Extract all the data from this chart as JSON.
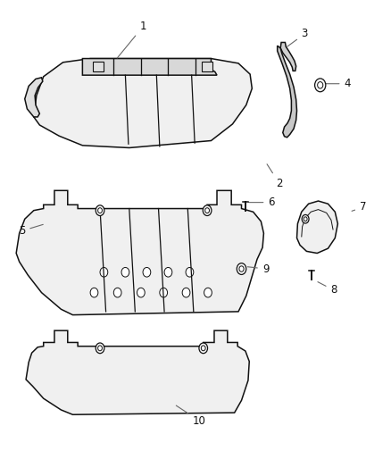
{
  "background_color": "#ffffff",
  "line_color": "#111111",
  "fill_color": "#f0f0f0",
  "fill_dark": "#d8d8d8",
  "label_color": "#111111",
  "label_data": [
    [
      1,
      0.365,
      0.945,
      0.295,
      0.875
    ],
    [
      2,
      0.715,
      0.615,
      0.68,
      0.66
    ],
    [
      3,
      0.78,
      0.93,
      0.73,
      0.9
    ],
    [
      4,
      0.89,
      0.825,
      0.825,
      0.825
    ],
    [
      5,
      0.055,
      0.515,
      0.115,
      0.53
    ],
    [
      6,
      0.695,
      0.575,
      0.63,
      0.575
    ],
    [
      7,
      0.93,
      0.565,
      0.895,
      0.555
    ],
    [
      8,
      0.855,
      0.39,
      0.808,
      0.41
    ],
    [
      9,
      0.68,
      0.435,
      0.627,
      0.44
    ],
    [
      10,
      0.51,
      0.115,
      0.445,
      0.15
    ]
  ]
}
